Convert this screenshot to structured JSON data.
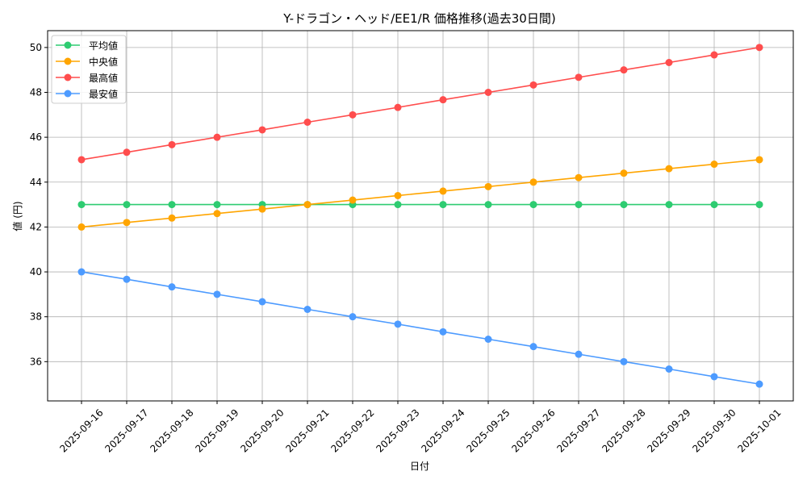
{
  "chart_data": {
    "type": "line",
    "title": "Y-ドラゴン・ヘッド/EE1/R 価格推移(過去30日間)",
    "xlabel": "日付",
    "ylabel": "値 (円)",
    "ylim": [
      34.25,
      50.75
    ],
    "yticks": [
      36,
      38,
      40,
      42,
      44,
      46,
      48,
      50
    ],
    "grid": true,
    "legend_position": "top-left",
    "x": [
      "2025-09-16",
      "2025-09-17",
      "2025-09-18",
      "2025-09-19",
      "2025-09-20",
      "2025-09-21",
      "2025-09-22",
      "2025-09-23",
      "2025-09-24",
      "2025-09-25",
      "2025-09-26",
      "2025-09-27",
      "2025-09-28",
      "2025-09-29",
      "2025-09-30",
      "2025-10-01"
    ],
    "series": [
      {
        "name": "平均値",
        "color": "#2ecc71",
        "values": [
          43,
          43,
          43,
          43,
          43,
          43,
          43,
          43,
          43,
          43,
          43,
          43,
          43,
          43,
          43,
          43
        ]
      },
      {
        "name": "中央値",
        "color": "#ffa500",
        "values": [
          42,
          42.2,
          42.4,
          42.6,
          42.8,
          43,
          43.2,
          43.4,
          43.6,
          43.8,
          44,
          44.2,
          44.4,
          44.6,
          44.8,
          45
        ]
      },
      {
        "name": "最高値",
        "color": "#ff4d4d",
        "values": [
          45,
          45.33,
          45.67,
          46,
          46.33,
          46.67,
          47,
          47.33,
          47.67,
          48,
          48.33,
          48.67,
          49,
          49.33,
          49.67,
          50
        ]
      },
      {
        "name": "最安値",
        "color": "#4d9bff",
        "values": [
          40,
          39.67,
          39.33,
          39,
          38.67,
          38.33,
          38,
          37.67,
          37.33,
          37,
          36.67,
          36.33,
          36,
          35.67,
          35.33,
          35
        ]
      }
    ]
  }
}
